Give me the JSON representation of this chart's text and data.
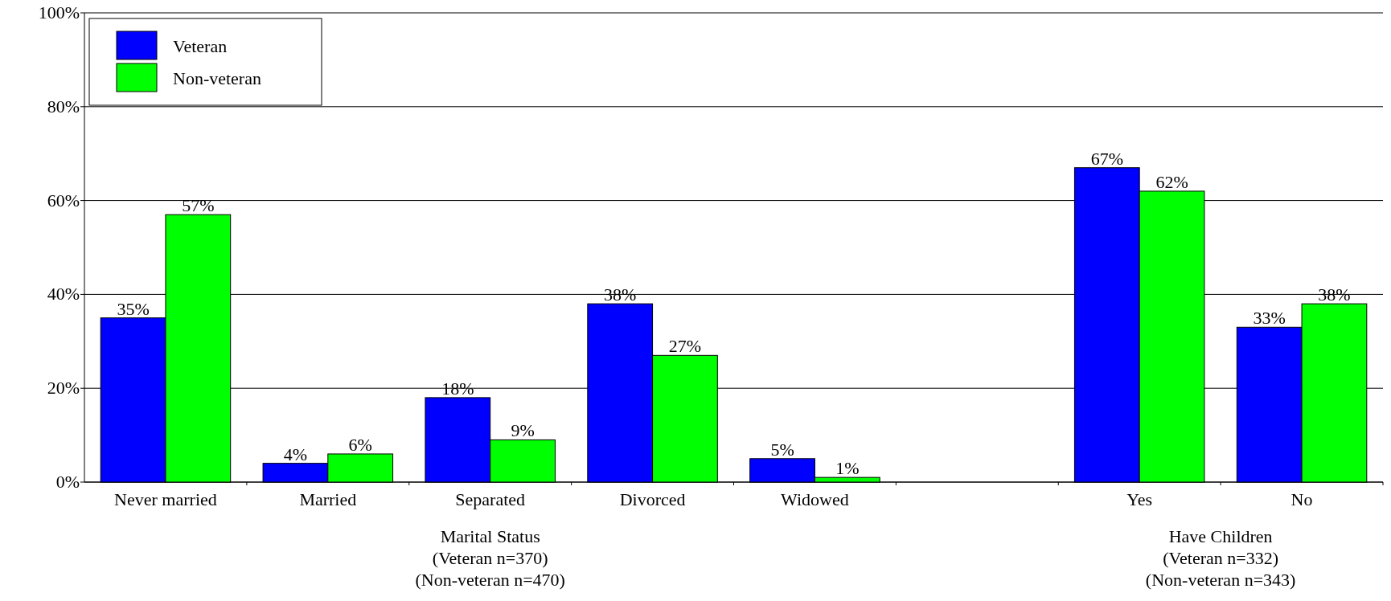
{
  "chart_data": {
    "type": "bar",
    "categories": [
      "Never married",
      "Married",
      "Separated",
      "Divorced",
      "Widowed",
      null,
      "Yes",
      "No"
    ],
    "series": [
      {
        "name": "Veteran",
        "color": "#0000ff",
        "values": [
          35,
          4,
          18,
          38,
          5,
          null,
          67,
          33
        ],
        "value_labels": [
          "35%",
          "4%",
          "18%",
          "38%",
          "5%",
          null,
          "67%",
          "33%"
        ]
      },
      {
        "name": "Non-veteran",
        "color": "#00ff00",
        "values": [
          57,
          6,
          9,
          27,
          1,
          null,
          62,
          38
        ],
        "value_labels": [
          "57%",
          "6%",
          "9%",
          "27%",
          "1%",
          null,
          "62%",
          "38%"
        ]
      }
    ],
    "ylim": [
      0,
      100
    ],
    "yticks": [
      {
        "value": 0,
        "label": "0%"
      },
      {
        "value": 20,
        "label": "20%"
      },
      {
        "value": 40,
        "label": "40%"
      },
      {
        "value": 60,
        "label": "60%"
      },
      {
        "value": 80,
        "label": "80%"
      },
      {
        "value": 100,
        "label": "100%"
      }
    ],
    "grid": "y",
    "legend": "top left",
    "annotations": [
      "Marital Status\n(Veteran n=370)\n(Non-veteran n=470)",
      "Have Children\n(Veteran n=332)\n(Non-veteran n=343)"
    ]
  }
}
